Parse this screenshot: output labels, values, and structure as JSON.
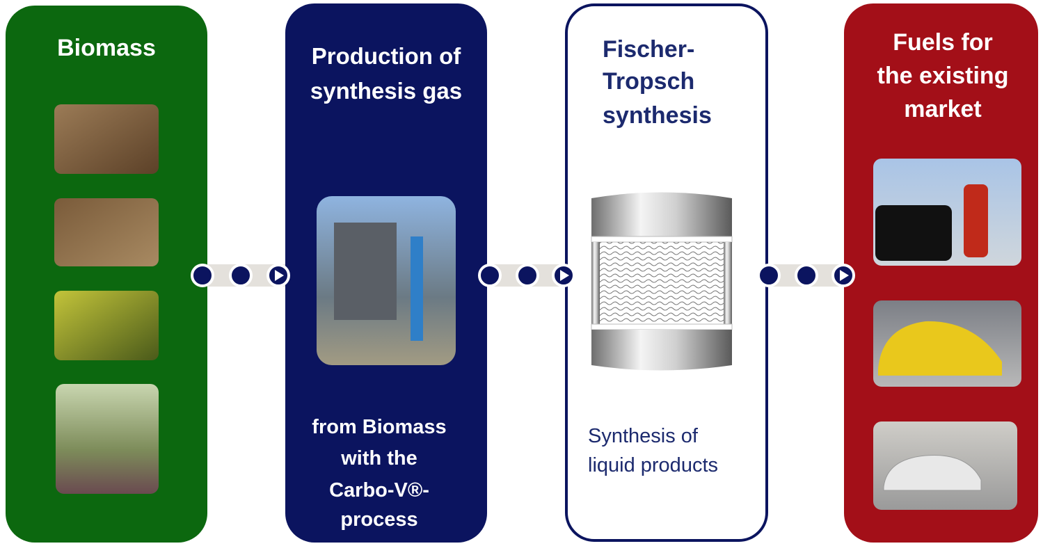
{
  "panels": [
    {
      "title_lines": [
        "Biomass"
      ]
    },
    {
      "title_lines": [
        "Production of",
        "synthesis gas"
      ],
      "caption_lines": [
        "from Biomass",
        "with the",
        "Carbo-V®-",
        "process"
      ]
    },
    {
      "title_lines": [
        "Fischer-",
        "Tropsch",
        "synthesis"
      ],
      "caption_lines": [
        "Synthesis of",
        "liquid products"
      ]
    },
    {
      "title_lines": [
        "Fuels for",
        "the existing",
        "market"
      ]
    }
  ]
}
